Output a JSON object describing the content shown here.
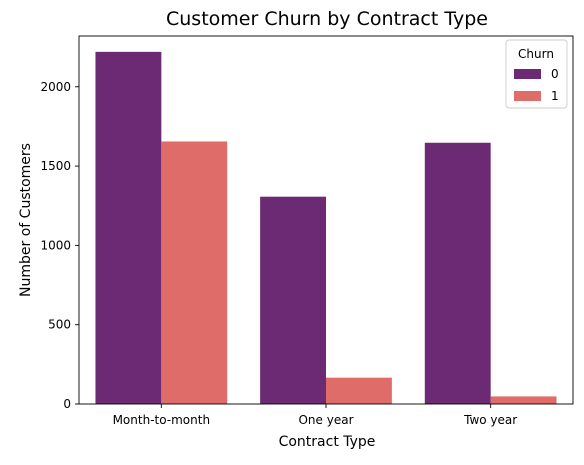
{
  "chart_data": {
    "type": "bar",
    "title": "Customer Churn by Contract Type",
    "xlabel": "Contract Type",
    "ylabel": "Number of Customers",
    "categories": [
      "Month-to-month",
      "One year",
      "Two year"
    ],
    "series": [
      {
        "name": "0",
        "values": [
          2220,
          1307,
          1647
        ],
        "color": "#6b2a73"
      },
      {
        "name": "1",
        "values": [
          1655,
          166,
          48
        ],
        "color": "#e06c69"
      }
    ],
    "ylim": [
      0,
      2320
    ],
    "yticks": [
      0,
      500,
      1000,
      1500,
      2000
    ],
    "grid": false,
    "legend": {
      "title": "Churn",
      "placement": "top-right"
    }
  }
}
